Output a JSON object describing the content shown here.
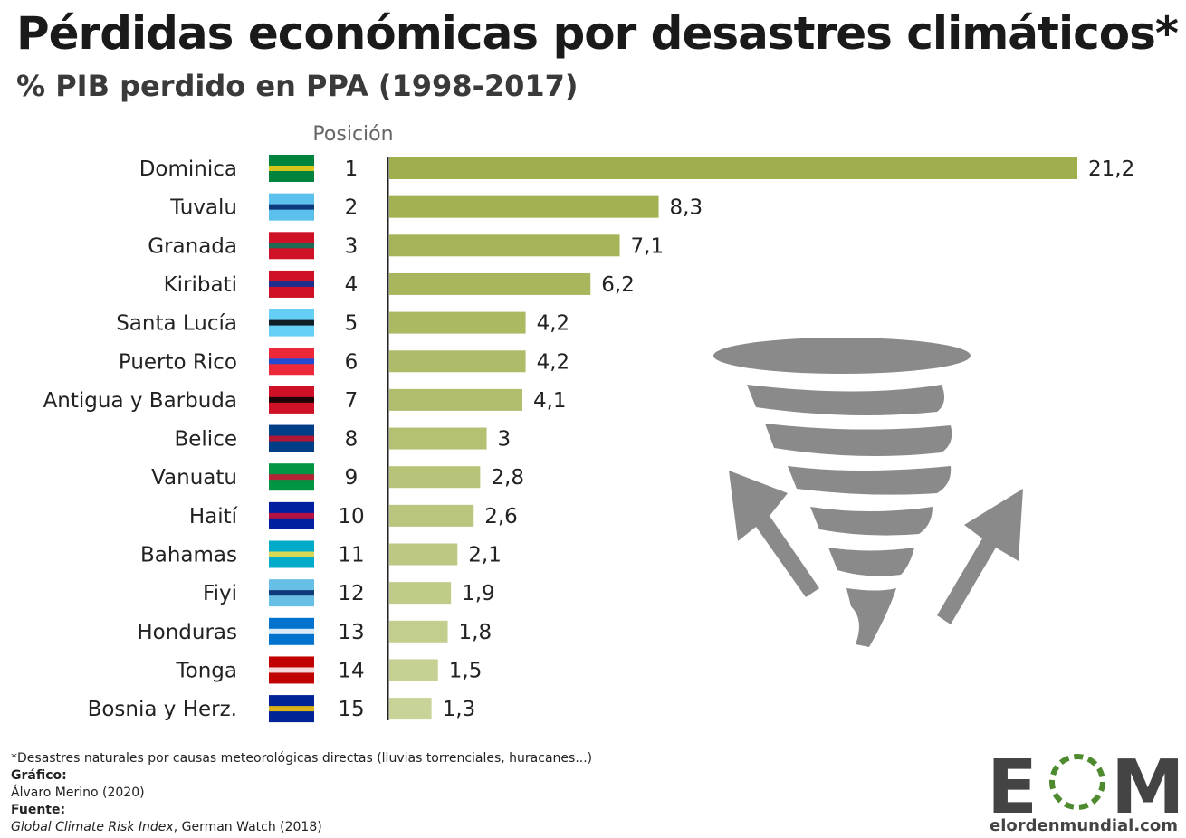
{
  "title": "Pérdidas económicas por desastres climáticos*",
  "subtitle": "% PIB perdido en PPA (1998-2017)",
  "chart_data": {
    "type": "bar",
    "orientation": "horizontal",
    "position_header": "Posición",
    "categories": [
      "Dominica",
      "Tuvalu",
      "Granada",
      "Kiribati",
      "Santa Lucía",
      "Puerto Rico",
      "Antigua y Barbuda",
      "Belice",
      "Vanuatu",
      "Haití",
      "Bahamas",
      "Fiyi",
      "Honduras",
      "Tonga",
      "Bosnia y Herz."
    ],
    "positions": [
      "1",
      "2",
      "3",
      "4",
      "5",
      "6",
      "7",
      "8",
      "9",
      "10",
      "11",
      "12",
      "13",
      "14",
      "15"
    ],
    "values": [
      21.2,
      8.3,
      7.1,
      6.2,
      4.2,
      4.2,
      4.1,
      3,
      2.8,
      2.6,
      2.1,
      1.9,
      1.8,
      1.5,
      1.3
    ],
    "value_labels": [
      "21,2",
      "8,3",
      "7,1",
      "6,2",
      "4,2",
      "4,2",
      "4,1",
      "3",
      "2,8",
      "2,6",
      "2,1",
      "1,9",
      "1,8",
      "1,5",
      "1,3"
    ],
    "xlim": [
      0,
      21.2
    ],
    "grid": false,
    "colors": {
      "dark": "#a0ae4e",
      "light": "#c8d398"
    }
  },
  "icons": {
    "flags": "country-flag",
    "decoration": "tornado-icon"
  },
  "footer": {
    "note": "*Desastres naturales por causas meteorológicas directas (lluvias torrenciales, huracanes...)",
    "grafico_label": "Gráfico:",
    "grafico": "Álvaro Merino (2020)",
    "fuente_label": "Fuente:",
    "fuente_italic": "Global Climate Risk Index",
    "fuente_rest": ", German Watch (2018)"
  },
  "logo": {
    "letters": "EOM",
    "site": "elordenmundial.com",
    "green": "#4e8a2e",
    "gray": "#444444"
  }
}
